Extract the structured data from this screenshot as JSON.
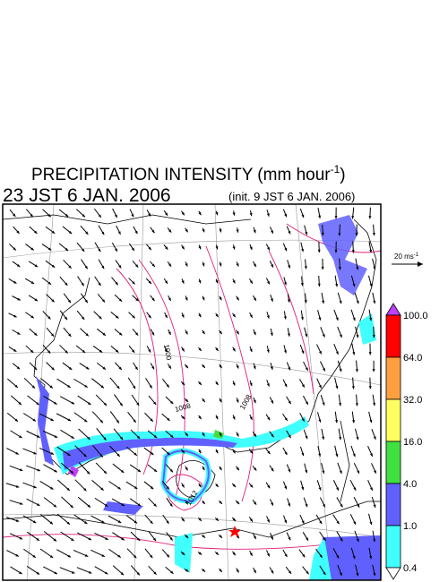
{
  "header": {
    "title": {
      "text": "PRECIPITATION INTENSITY (mm hour",
      "superscript": "-1",
      "suffix": ")"
    },
    "valid_time": "23 JST 6 JAN. 2006",
    "init_time": "(init. 9 JST 6 JAN. 2006)"
  },
  "wind_scale": {
    "text": "20 ms",
    "superscript": "-1"
  },
  "contour_labels": [
    "1000",
    "1008",
    "1008",
    "1012"
  ],
  "legend": {
    "levels": [
      {
        "value": 100,
        "label": "100.0"
      },
      {
        "value": 64,
        "label": "64.0"
      },
      {
        "value": 32,
        "label": "32.0"
      },
      {
        "value": 16,
        "label": "16.0"
      },
      {
        "value": 4,
        "label": "4.0"
      },
      {
        "value": 1,
        "label": "1.0"
      },
      {
        "value": 0.4,
        "label": "0.4"
      }
    ],
    "colors": [
      "#ff0000",
      "#ffa040",
      "#ffff60",
      "#40e040",
      "#6060ff",
      "#40ffff"
    ],
    "over_color": "#c040ff",
    "under_color": "#ffffff"
  }
}
